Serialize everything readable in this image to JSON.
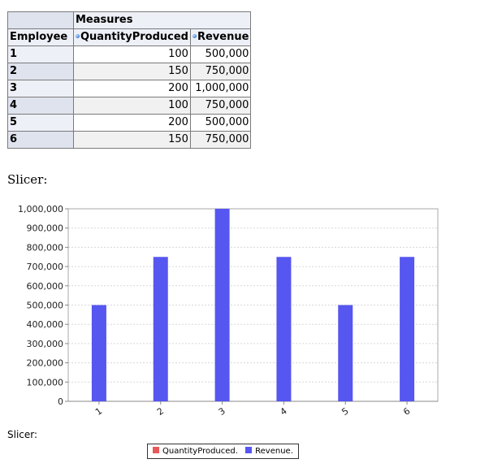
{
  "pivot": {
    "measures_label": "Measures",
    "row_header": "Employee",
    "columns": [
      "QuantityProduced",
      "Revenue"
    ],
    "rows": [
      {
        "employee": "1",
        "quantity": "100",
        "revenue": "500,000"
      },
      {
        "employee": "2",
        "quantity": "150",
        "revenue": "750,000"
      },
      {
        "employee": "3",
        "quantity": "200",
        "revenue": "1,000,000"
      },
      {
        "employee": "4",
        "quantity": "100",
        "revenue": "750,000"
      },
      {
        "employee": "5",
        "quantity": "200",
        "revenue": "500,000"
      },
      {
        "employee": "6",
        "quantity": "150",
        "revenue": "750,000"
      }
    ]
  },
  "slicer_top": "Slicer:",
  "slicer_bottom": "Slicer:",
  "colors": {
    "quantity": "#e85858",
    "revenue": "#5656f0",
    "grid": "#d8d8d8",
    "axis": "#888888"
  },
  "chart_data": {
    "type": "bar",
    "categories": [
      "1",
      "2",
      "3",
      "4",
      "5",
      "6"
    ],
    "series": [
      {
        "name": "QuantityProduced",
        "values": [
          100,
          150,
          200,
          100,
          200,
          150
        ]
      },
      {
        "name": "Revenue",
        "values": [
          500000,
          750000,
          1000000,
          750000,
          500000,
          750000
        ]
      }
    ],
    "y_ticks": [
      "0",
      "100,000",
      "200,000",
      "300,000",
      "400,000",
      "500,000",
      "600,000",
      "700,000",
      "800,000",
      "900,000",
      "1,000,000"
    ],
    "ylim": [
      0,
      1000000
    ],
    "grid": true,
    "legend": {
      "placement": "bottom",
      "entries": [
        "QuantityProduced.",
        "Revenue."
      ]
    }
  }
}
